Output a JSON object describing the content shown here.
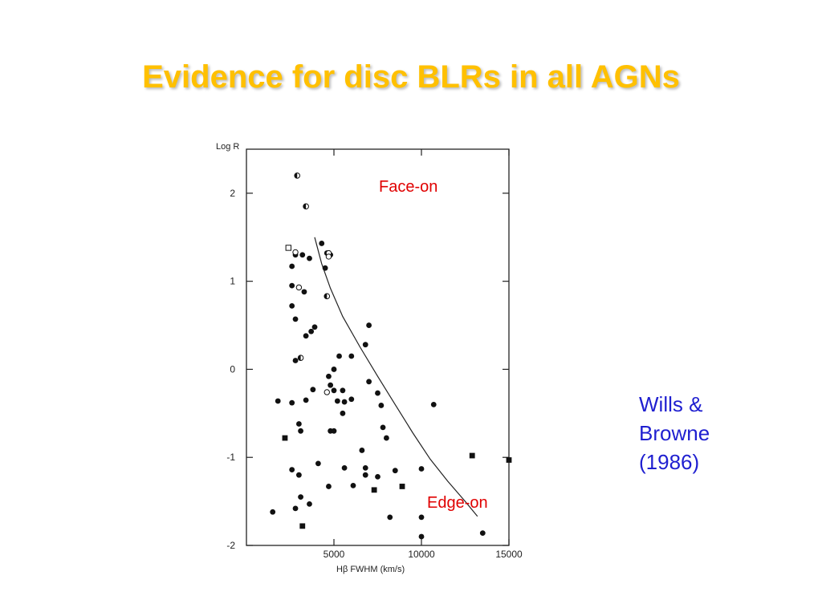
{
  "slide": {
    "title": "Evidence for disc BLRs in all AGNs",
    "title_color": "#ffc000",
    "citation_lines": [
      "Wills &",
      "Browne",
      "(1986)"
    ],
    "citation_color": "#1f1fd0",
    "annotation_color": "#e00000"
  },
  "chart_data": {
    "type": "scatter",
    "title": "",
    "ylabel": "Log R",
    "xlabel": "Hβ FWHM (km/s)",
    "xlim": [
      0,
      15000
    ],
    "ylim": [
      -2,
      2.5
    ],
    "x_ticks": [
      5000,
      10000,
      15000
    ],
    "y_ticks": [
      2,
      1,
      0,
      -1,
      -2
    ],
    "grid": false,
    "annotations": [
      "Face-on",
      "Edge-on"
    ],
    "curve": {
      "x": [
        3900,
        4300,
        4800,
        5500,
        6500,
        7500,
        8500,
        9500,
        10500,
        11500,
        12500,
        13200
      ],
      "y": [
        1.5,
        1.2,
        0.92,
        0.6,
        0.25,
        -0.08,
        -0.4,
        -0.72,
        -1.02,
        -1.27,
        -1.5,
        -1.67
      ]
    },
    "series": [
      {
        "marker": "filled-circle",
        "points": [
          [
            2800,
            1.3
          ],
          [
            3200,
            1.3
          ],
          [
            3600,
            1.26
          ],
          [
            4300,
            1.43
          ],
          [
            4600,
            1.32
          ],
          [
            4800,
            1.3
          ],
          [
            2600,
            1.17
          ],
          [
            4500,
            1.15
          ],
          [
            2600,
            0.95
          ],
          [
            3300,
            0.88
          ],
          [
            2600,
            0.72
          ],
          [
            2800,
            0.57
          ],
          [
            3700,
            0.43
          ],
          [
            3900,
            0.48
          ],
          [
            3400,
            0.38
          ],
          [
            7000,
            0.5
          ],
          [
            6800,
            0.28
          ],
          [
            5300,
            0.15
          ],
          [
            6000,
            0.15
          ],
          [
            2800,
            0.1
          ],
          [
            5000,
            0
          ],
          [
            4700,
            -0.08
          ],
          [
            4800,
            -0.18
          ],
          [
            7000,
            -0.14
          ],
          [
            7500,
            -0.27
          ],
          [
            3800,
            -0.23
          ],
          [
            1800,
            -0.36
          ],
          [
            2600,
            -0.38
          ],
          [
            3400,
            -0.35
          ],
          [
            5000,
            -0.24
          ],
          [
            5500,
            -0.24
          ],
          [
            5200,
            -0.36
          ],
          [
            5600,
            -0.37
          ],
          [
            6000,
            -0.34
          ],
          [
            7700,
            -0.41
          ],
          [
            10700,
            -0.4
          ],
          [
            5500,
            -0.5
          ],
          [
            3000,
            -0.62
          ],
          [
            3100,
            -0.7
          ],
          [
            4800,
            -0.7
          ],
          [
            5000,
            -0.7
          ],
          [
            7800,
            -0.66
          ],
          [
            8000,
            -0.78
          ],
          [
            6600,
            -0.92
          ],
          [
            2600,
            -1.14
          ],
          [
            3000,
            -1.2
          ],
          [
            4100,
            -1.07
          ],
          [
            5600,
            -1.12
          ],
          [
            6800,
            -1.12
          ],
          [
            8500,
            -1.15
          ],
          [
            10000,
            -1.13
          ],
          [
            4700,
            -1.33
          ],
          [
            6100,
            -1.32
          ],
          [
            6800,
            -1.2
          ],
          [
            7500,
            -1.22
          ],
          [
            3100,
            -1.45
          ],
          [
            3600,
            -1.53
          ],
          [
            2800,
            -1.58
          ],
          [
            1500,
            -1.62
          ],
          [
            8200,
            -1.68
          ],
          [
            10000,
            -1.68
          ],
          [
            10000,
            -1.9
          ],
          [
            13500,
            -1.86
          ]
        ]
      },
      {
        "marker": "half-filled-circle",
        "points": [
          [
            2900,
            2.2
          ],
          [
            3400,
            1.85
          ],
          [
            4600,
            0.83
          ],
          [
            3100,
            0.13
          ]
        ]
      },
      {
        "marker": "open-circle",
        "points": [
          [
            2800,
            1.33
          ],
          [
            4700,
            1.32
          ],
          [
            4700,
            1.28
          ],
          [
            3000,
            0.93
          ],
          [
            4600,
            -0.26
          ]
        ]
      },
      {
        "marker": "open-square",
        "points": [
          [
            2400,
            1.38
          ]
        ]
      },
      {
        "marker": "filled-square",
        "points": [
          [
            2200,
            -0.78
          ],
          [
            3200,
            -1.78
          ],
          [
            7300,
            -1.37
          ],
          [
            8900,
            -1.33
          ],
          [
            12900,
            -0.98
          ],
          [
            15000,
            -1.03
          ]
        ]
      }
    ]
  }
}
